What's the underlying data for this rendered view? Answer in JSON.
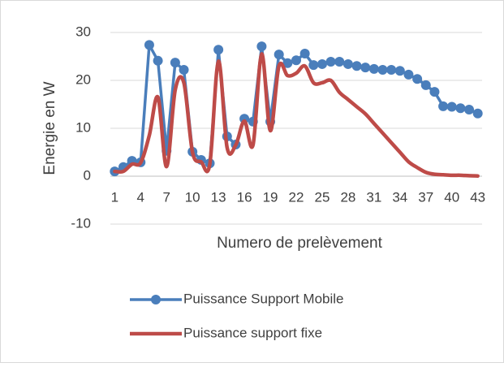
{
  "chart_data": {
    "type": "line",
    "xlabel": "Numero de prelèvement",
    "ylabel": "Energie en W",
    "categories": [
      1,
      null,
      null,
      4,
      null,
      null,
      7,
      null,
      null,
      10,
      null,
      null,
      13,
      null,
      null,
      16,
      null,
      null,
      19,
      null,
      null,
      22,
      null,
      null,
      25,
      null,
      null,
      28,
      null,
      null,
      31,
      null,
      null,
      34,
      null,
      null,
      37,
      null,
      null,
      40,
      null,
      null,
      43
    ],
    "series": [
      {
        "name": "Puissance Support Mobile",
        "color": "#4a7ebb",
        "marker": true,
        "values": [
          1.0,
          1.9,
          3.2,
          2.9,
          27.4,
          24.1,
          5.3,
          23.7,
          22.2,
          5.1,
          3.4,
          2.7,
          26.4,
          8.3,
          6.6,
          12.0,
          11.4,
          27.1,
          11.4,
          25.4,
          23.6,
          24.2,
          25.6,
          23.2,
          23.4,
          23.9,
          23.9,
          23.4,
          23.0,
          22.7,
          22.4,
          22.2,
          22.2,
          22.0,
          21.2,
          20.3,
          19.0,
          17.6,
          14.6,
          14.5,
          14.2,
          13.9,
          13.1
        ]
      },
      {
        "name": "Puissance support fixe",
        "color": "#be4b48",
        "marker": false,
        "values": [
          1.0,
          1.0,
          2.5,
          2.8,
          8.5,
          16.5,
          2.0,
          18.0,
          19.5,
          5.0,
          3.0,
          2.5,
          24.0,
          6.0,
          6.5,
          11.5,
          6.5,
          25.5,
          9.5,
          23.0,
          21.0,
          21.5,
          23.0,
          19.5,
          19.5,
          20.0,
          17.5,
          16.0,
          14.5,
          13.0,
          11.0,
          9.0,
          7.0,
          5.0,
          3.0,
          1.8,
          0.8,
          0.4,
          0.3,
          0.2,
          0.2,
          0.1,
          0.05
        ]
      }
    ],
    "ylim": [
      -10,
      30
    ],
    "yticks": [
      -10,
      0,
      10,
      20,
      30
    ],
    "grid": true,
    "legend": "bottom"
  }
}
